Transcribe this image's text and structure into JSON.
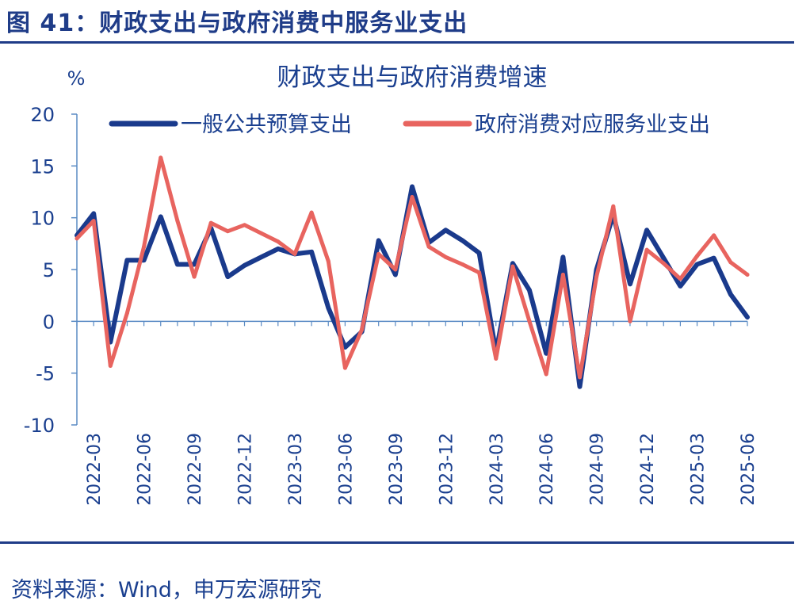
{
  "figure": {
    "title": "图 41：财政支出与政府消费中服务业支出",
    "source": "资料来源：Wind，申万宏源研究"
  },
  "colors": {
    "series1": "#1a3a8c",
    "series2": "#e8645f",
    "text": "#1a3f8f",
    "axis": "#5a8bc4"
  },
  "chart_data": {
    "type": "line",
    "title": "财政支出与政府消费增速",
    "ylabel": "%",
    "xlabel": "",
    "ylim": [
      -10,
      20
    ],
    "yticks": [
      -10,
      -5,
      0,
      5,
      10,
      15,
      20
    ],
    "grid": false,
    "legend_position": "top",
    "x": [
      "2022-02",
      "2022-03",
      "2022-04",
      "2022-05",
      "2022-06",
      "2022-07",
      "2022-08",
      "2022-09",
      "2022-10",
      "2022-11",
      "2022-12",
      "2023-01",
      "2023-02",
      "2023-03",
      "2023-04",
      "2023-05",
      "2023-06",
      "2023-07",
      "2023-08",
      "2023-09",
      "2023-10",
      "2023-11",
      "2023-12",
      "2024-01",
      "2024-02",
      "2024-03",
      "2024-04",
      "2024-05",
      "2024-06",
      "2024-07",
      "2024-08",
      "2024-09",
      "2024-10",
      "2024-11",
      "2024-12",
      "2025-01",
      "2025-02",
      "2025-03",
      "2025-04",
      "2025-05",
      "2025-06"
    ],
    "xtick_labels": [
      "2022-03",
      "2022-06",
      "2022-09",
      "2022-12",
      "2023-03",
      "2023-06",
      "2023-09",
      "2023-12",
      "2024-03",
      "2024-06",
      "2024-09",
      "2024-12",
      "2025-03",
      "2025-06"
    ],
    "series": [
      {
        "name": "一般公共预算支出",
        "values": [
          8.3,
          10.4,
          -2.0,
          5.9,
          5.9,
          10.1,
          5.5,
          5.5,
          9.0,
          4.3,
          5.4,
          6.2,
          7.0,
          6.5,
          6.7,
          1.3,
          -2.5,
          -1.0,
          7.8,
          4.5,
          13.0,
          7.6,
          8.8,
          7.8,
          6.6,
          -3.0,
          5.6,
          3.0,
          -3.1,
          6.2,
          -6.3,
          5.0,
          10.3,
          3.6,
          8.8,
          6.1,
          3.4,
          5.5,
          6.1,
          2.6,
          0.4
        ]
      },
      {
        "name": "政府消费对应服务业支出",
        "values": [
          8.0,
          9.7,
          -4.3,
          0.8,
          7.2,
          15.8,
          9.7,
          4.3,
          9.5,
          8.7,
          9.3,
          8.5,
          7.7,
          6.5,
          10.5,
          5.8,
          -4.5,
          -0.8,
          6.5,
          5.0,
          12.0,
          7.2,
          6.2,
          5.5,
          4.7,
          -3.6,
          5.3,
          0.0,
          -5.1,
          4.5,
          -5.4,
          4.3,
          11.1,
          0.0,
          6.9,
          5.6,
          4.1,
          6.3,
          8.3,
          5.7,
          4.5
        ]
      }
    ]
  }
}
